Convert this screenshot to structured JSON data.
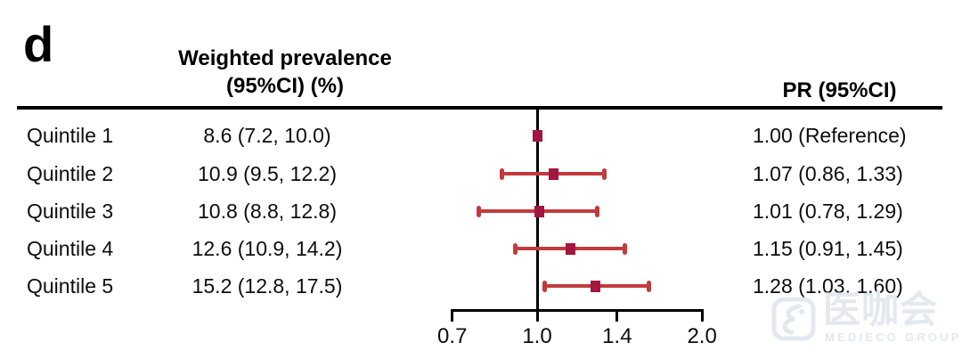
{
  "panel_label": "d",
  "headers": {
    "prevalence_line1": "Weighted prevalence",
    "prevalence_line2": "(95%CI) (%)",
    "pr": "PR (95%CI)"
  },
  "rows": [
    {
      "label": "Quintile 1",
      "prevalence": "8.6 (7.2, 10.0)",
      "pr": "1.00 (Reference)"
    },
    {
      "label": "Quintile 2",
      "prevalence": "10.9 (9.5, 12.2)",
      "pr": "1.07 (0.86, 1.33)"
    },
    {
      "label": "Quintile 3",
      "prevalence": "10.8 (8.8, 12.8)",
      "pr": "1.01 (0.78, 1.29)"
    },
    {
      "label": "Quintile 4",
      "prevalence": "12.6 (10.9, 14.2)",
      "pr": "1.15 (0.91, 1.45)"
    },
    {
      "label": "Quintile 5",
      "prevalence": "15.2 (12.8, 17.5)",
      "pr": "1.28 (1.03, 1.60)"
    }
  ],
  "chart_data": {
    "type": "scatter",
    "subtype": "forest-plot",
    "title": "",
    "xlabel": "",
    "x_scale": "log",
    "xlim": [
      0.7,
      2.0
    ],
    "categories": [
      "Quintile 1",
      "Quintile 2",
      "Quintile 3",
      "Quintile 4",
      "Quintile 5"
    ],
    "series": [
      {
        "name": "PR (95%CI)",
        "values": [
          1.0,
          1.07,
          1.01,
          1.15,
          1.28
        ],
        "ci_low": [
          null,
          0.86,
          0.78,
          0.91,
          1.03
        ],
        "ci_high": [
          null,
          1.33,
          1.29,
          1.45,
          1.6
        ]
      }
    ],
    "reference_line": 1.0,
    "reference_row": "Quintile 1",
    "x_ticks": [
      "0.7",
      "1.0",
      "1.4",
      "2.0"
    ],
    "x_tick_values": [
      0.7,
      1.0,
      1.4,
      2.0
    ],
    "grid": false,
    "marker_color": "#a2163f",
    "ci_color": "#c23b3c",
    "axis_color": "#000000"
  },
  "watermark": {
    "chinese": "医咖会",
    "english": "MEDIECO GROUP"
  }
}
